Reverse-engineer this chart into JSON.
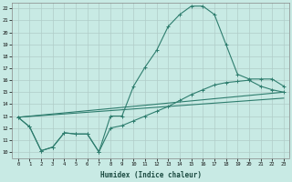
{
  "xlabel": "Humidex (Indice chaleur)",
  "bg_color": "#c8eae4",
  "grid_color": "#b0ccc8",
  "line_color": "#2e7d6e",
  "xlim": [
    -0.5,
    23.5
  ],
  "ylim": [
    9.5,
    22.5
  ],
  "yticks": [
    10,
    11,
    12,
    13,
    14,
    15,
    16,
    17,
    18,
    19,
    20,
    21,
    22
  ],
  "xticks": [
    0,
    1,
    2,
    3,
    4,
    5,
    6,
    7,
    8,
    9,
    10,
    11,
    12,
    13,
    14,
    15,
    16,
    17,
    18,
    19,
    20,
    21,
    22,
    23
  ],
  "line1_x": [
    0,
    1,
    2,
    3,
    4,
    5,
    6,
    7,
    8,
    9,
    10,
    11,
    12,
    13,
    14,
    15,
    16,
    17,
    18,
    19,
    20,
    21,
    22,
    23
  ],
  "line1_y": [
    12.9,
    12.1,
    10.1,
    10.4,
    11.6,
    11.5,
    11.5,
    10.0,
    13.0,
    13.0,
    15.5,
    17.1,
    18.5,
    20.5,
    21.5,
    22.2,
    22.2,
    21.5,
    19.0,
    16.5,
    16.1,
    16.1,
    16.1,
    15.5
  ],
  "line2_x": [
    0,
    1,
    2,
    3,
    4,
    5,
    6,
    7,
    8,
    9,
    10,
    11,
    12,
    13,
    14,
    15,
    16,
    17,
    18,
    19,
    20,
    21,
    22,
    23
  ],
  "line2_y": [
    12.9,
    12.1,
    10.1,
    10.4,
    11.6,
    11.5,
    11.5,
    10.0,
    12.0,
    12.2,
    12.6,
    13.0,
    13.4,
    13.8,
    14.3,
    14.8,
    15.2,
    15.6,
    15.8,
    15.9,
    16.0,
    15.5,
    15.2,
    15.0
  ],
  "line3_x": [
    0,
    23
  ],
  "line3_y": [
    12.9,
    15.0
  ],
  "line4_x": [
    0,
    23
  ],
  "line4_y": [
    12.9,
    14.5
  ]
}
